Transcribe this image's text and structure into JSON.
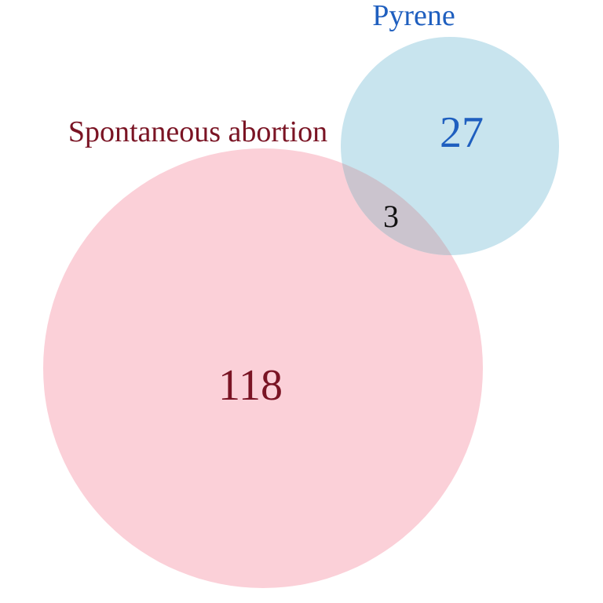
{
  "chart_data": {
    "type": "venn",
    "sets": [
      {
        "name": "Spontaneous abortion",
        "only_count": "118",
        "fill_color": "#fbd0d8",
        "label_color": "#7a1424"
      },
      {
        "name": "Pyrene",
        "only_count": "27",
        "fill_color": "#c8e4ee",
        "label_color": "#1f5fbf"
      }
    ],
    "intersection": {
      "count": "3",
      "fill_color": "#cbc4ce",
      "label_color": "#111111"
    }
  }
}
